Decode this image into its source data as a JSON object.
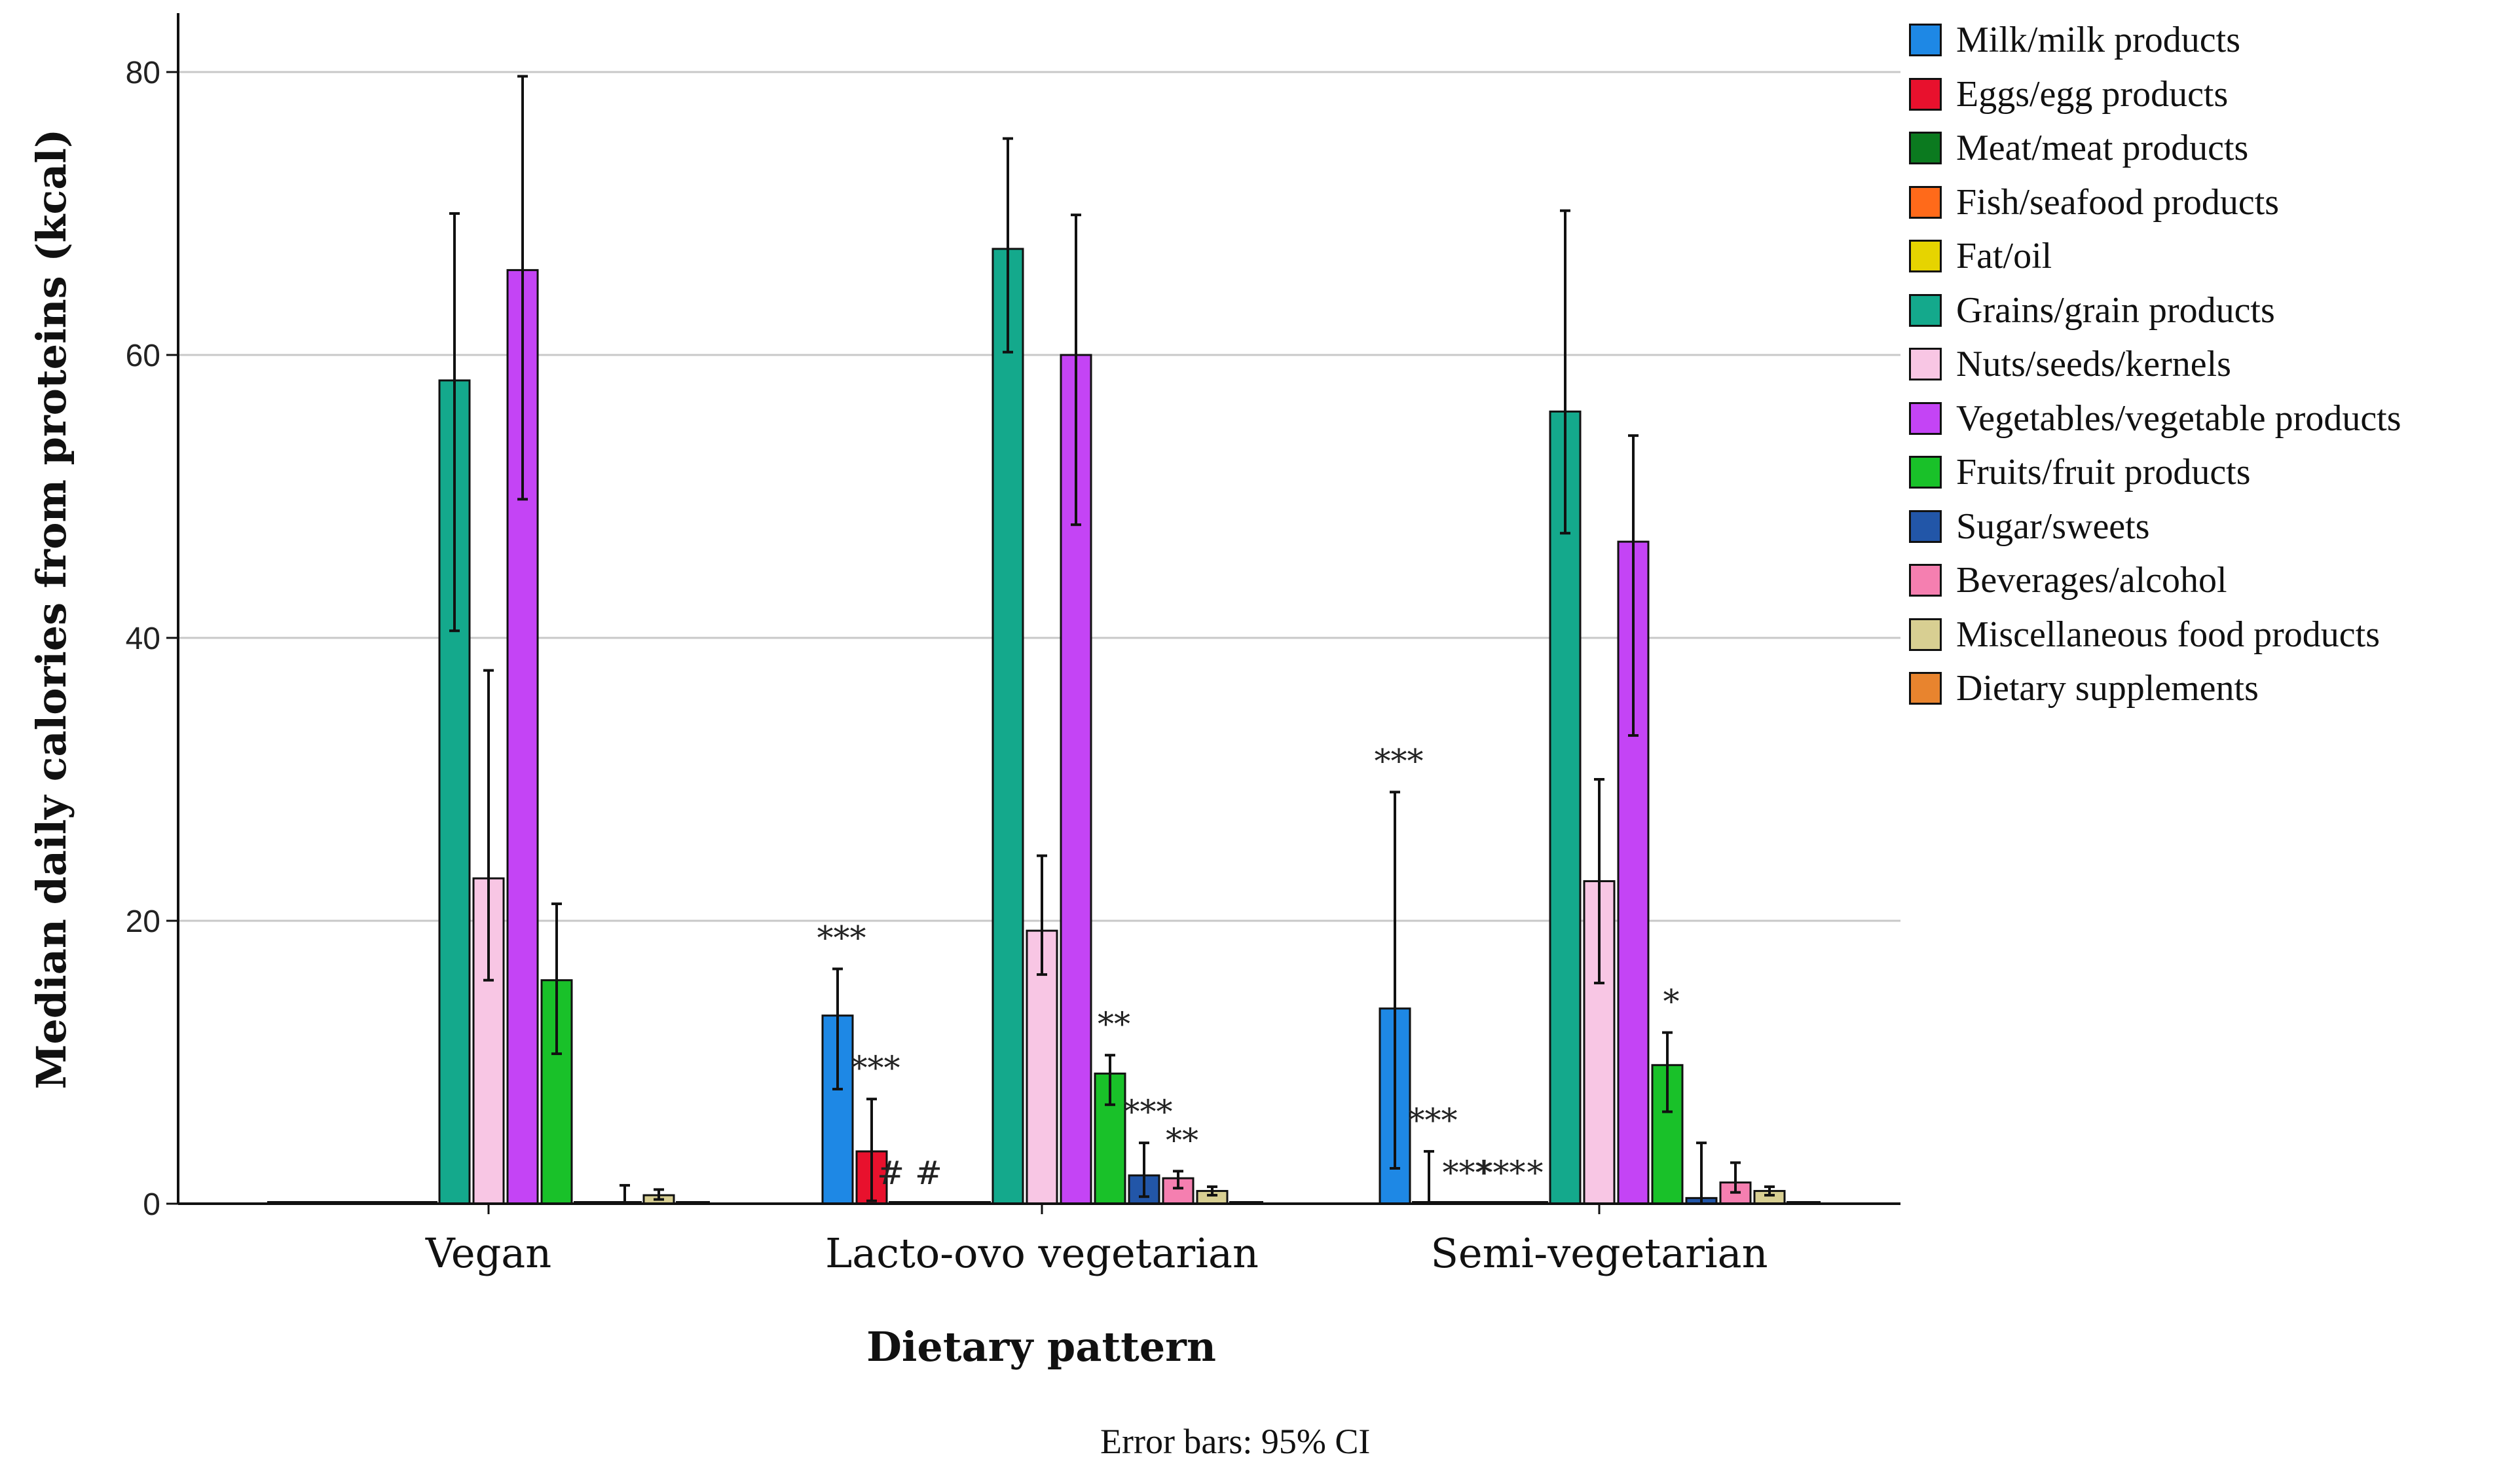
{
  "chart_data": {
    "type": "bar",
    "xlabel": "Dietary pattern",
    "ylabel": "Median daily calories from proteins (kcal)",
    "ylim": [
      0,
      80
    ],
    "yticks": [
      0,
      20,
      40,
      60,
      80
    ],
    "grid": true,
    "legend_position": "right",
    "categories": [
      "Vegan",
      "Lacto-ovo vegetarian",
      "Semi-vegetarian"
    ],
    "footnote": "Error bars: 95% CI",
    "series": [
      {
        "name": "Milk/milk products",
        "color": "#1E88E5",
        "values": [
          0,
          13.3,
          13.8
        ],
        "err_low": [
          0,
          8.1,
          2.5
        ],
        "err_high": [
          0,
          16.6,
          29.1
        ],
        "annotations": [
          "",
          "***",
          "***"
        ]
      },
      {
        "name": "Eggs/egg products",
        "color": "#E8112D",
        "values": [
          0,
          3.7,
          0
        ],
        "err_low": [
          0,
          0.2,
          0
        ],
        "err_high": [
          0,
          7.4,
          3.7
        ],
        "annotations": [
          "",
          "***",
          "***"
        ]
      },
      {
        "name": "Meat/meat products",
        "color": "#0B7A1F",
        "values": [
          0,
          0,
          0
        ],
        "err_low": [
          0,
          0,
          0
        ],
        "err_high": [
          0,
          0,
          0
        ],
        "annotations": [
          "",
          "# #",
          "***"
        ]
      },
      {
        "name": "Fish/seafood products",
        "color": "#FF6A1A",
        "values": [
          0,
          0,
          0
        ],
        "err_low": [
          0,
          0,
          0
        ],
        "err_high": [
          0,
          0,
          0
        ],
        "annotations": [
          "",
          "",
          "***"
        ]
      },
      {
        "name": "Fat/oil",
        "color": "#E6D400",
        "values": [
          0,
          0,
          0
        ],
        "err_low": [
          0,
          0,
          0
        ],
        "err_high": [
          0,
          0,
          0
        ],
        "annotations": [
          "",
          "",
          "*"
        ]
      },
      {
        "name": "Grains/grain products",
        "color": "#14A98C",
        "values": [
          58.2,
          67.5,
          56.0
        ],
        "err_low": [
          40.5,
          60.2,
          47.4
        ],
        "err_high": [
          70.0,
          75.3,
          70.2
        ],
        "annotations": [
          "",
          "",
          ""
        ]
      },
      {
        "name": "Nuts/seeds/kernels",
        "color": "#F8C6E4",
        "values": [
          23.0,
          19.3,
          22.8
        ],
        "err_low": [
          15.8,
          16.2,
          15.6
        ],
        "err_high": [
          37.7,
          24.6,
          30.0
        ],
        "annotations": [
          "",
          "",
          ""
        ]
      },
      {
        "name": "Vegetables/vegetable products",
        "color": "#C444F5",
        "values": [
          66.0,
          60.0,
          46.8
        ],
        "err_low": [
          49.8,
          48.0,
          33.1
        ],
        "err_high": [
          79.7,
          69.9,
          54.3
        ],
        "annotations": [
          "",
          "",
          ""
        ]
      },
      {
        "name": "Fruits/fruit products",
        "color": "#19C129",
        "values": [
          15.8,
          9.2,
          9.8
        ],
        "err_low": [
          10.6,
          7.0,
          6.5
        ],
        "err_high": [
          21.2,
          10.5,
          12.1
        ],
        "annotations": [
          "",
          "**",
          "*"
        ]
      },
      {
        "name": "Sugar/sweets",
        "color": "#2256A8",
        "values": [
          0,
          2.0,
          0.4
        ],
        "err_low": [
          0,
          0.5,
          0
        ],
        "err_high": [
          0,
          4.3,
          4.3
        ],
        "annotations": [
          "",
          "***",
          ""
        ]
      },
      {
        "name": "Beverages/alcohol",
        "color": "#F57FB0",
        "values": [
          0,
          1.8,
          1.5
        ],
        "err_low": [
          0,
          1.1,
          0.8
        ],
        "err_high": [
          1.3,
          2.3,
          2.9
        ],
        "annotations": [
          "",
          "**",
          ""
        ]
      },
      {
        "name": "Miscellaneous food products",
        "color": "#D8CF92",
        "values": [
          0.6,
          0.9,
          0.9
        ],
        "err_low": [
          0.3,
          0.6,
          0.6
        ],
        "err_high": [
          1.0,
          1.2,
          1.2
        ],
        "annotations": [
          "",
          "",
          ""
        ]
      },
      {
        "name": "Dietary supplements",
        "color": "#E8842E",
        "values": [
          0,
          0,
          0
        ],
        "err_low": [
          0,
          0,
          0
        ],
        "err_high": [
          0,
          0,
          0
        ],
        "annotations": [
          "",
          "",
          ""
        ]
      }
    ]
  }
}
